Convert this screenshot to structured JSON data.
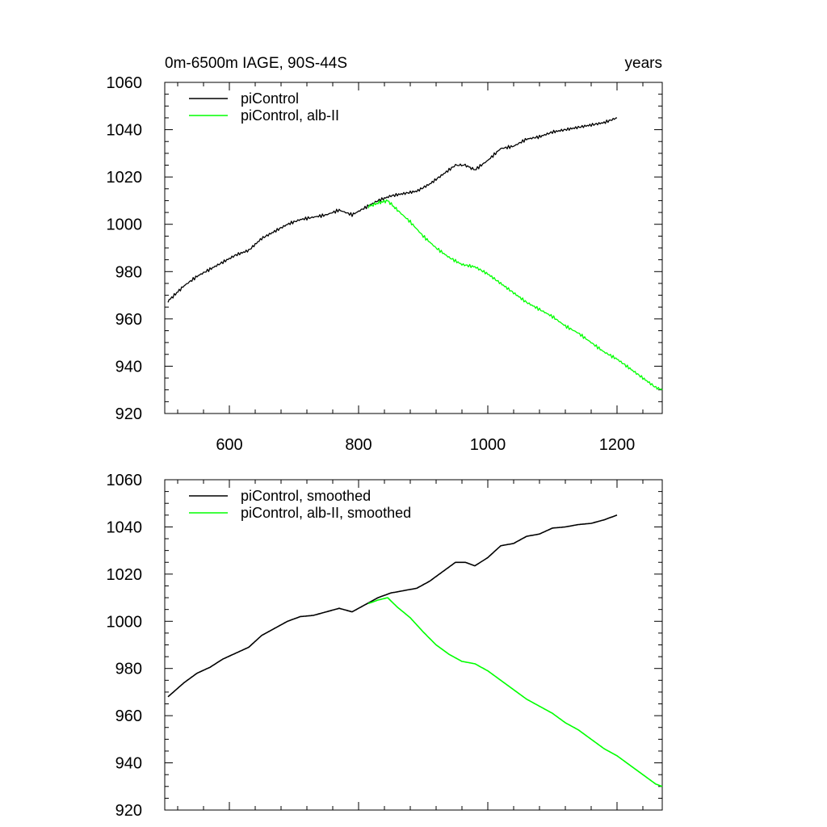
{
  "colors": {
    "control": "#000000",
    "albedo": "#00ff00"
  },
  "chart_data": [
    {
      "type": "line",
      "title_left": "0m-6500m IAGE, 90S-44S",
      "title_right": "years",
      "xlabel": "",
      "ylabel": "",
      "xlim": [
        500,
        1270
      ],
      "ylim": [
        920,
        1060
      ],
      "xticks": [
        600,
        800,
        1000,
        1200
      ],
      "xtick_labels": [
        "600",
        "800",
        "1000",
        "1200"
      ],
      "yticks": [
        920,
        940,
        960,
        980,
        1000,
        1020,
        1040,
        1060
      ],
      "ytick_labels": [
        "920",
        "940",
        "960",
        "980",
        "1000",
        "1020",
        "1040",
        "1060"
      ],
      "grid": false,
      "legend_position": "top-left",
      "series": [
        {
          "name": "piControl",
          "color": "#000000",
          "x": [
            505,
            530,
            550,
            570,
            590,
            610,
            630,
            650,
            670,
            690,
            710,
            730,
            750,
            770,
            790,
            810,
            830,
            850,
            870,
            890,
            910,
            930,
            950,
            965,
            980,
            1000,
            1020,
            1040,
            1060,
            1080,
            1100,
            1120,
            1140,
            1160,
            1180,
            1200
          ],
          "y": [
            967.5,
            974,
            978,
            981,
            984,
            987,
            989,
            994,
            997,
            1000,
            1002,
            1003,
            1004,
            1006,
            1004,
            1007,
            1010,
            1012,
            1013,
            1014,
            1017,
            1021,
            1025,
            1025,
            1023,
            1027,
            1032,
            1033,
            1036,
            1037,
            1039,
            1040,
            1041,
            1042,
            1043,
            1045
          ]
        },
        {
          "name": "piControl, alb-II",
          "color": "#00ff00",
          "x": [
            815,
            830,
            845,
            860,
            880,
            900,
            920,
            940,
            960,
            980,
            1000,
            1020,
            1040,
            1060,
            1080,
            1100,
            1120,
            1140,
            1160,
            1180,
            1200,
            1220,
            1240,
            1260,
            1270
          ],
          "y": [
            1007.5,
            1009,
            1010,
            1006,
            1001,
            995,
            990,
            986,
            983,
            982,
            979,
            975,
            971,
            967,
            964,
            961,
            957,
            954,
            950,
            946,
            943,
            939,
            935,
            931,
            930
          ]
        }
      ]
    },
    {
      "type": "line",
      "title_left": "",
      "title_right": "",
      "xlabel": "",
      "ylabel": "",
      "xlim": [
        500,
        1270
      ],
      "ylim": [
        920,
        1060
      ],
      "xticks": [
        600,
        800,
        1000,
        1200
      ],
      "xtick_labels": [],
      "yticks": [
        920,
        940,
        960,
        980,
        1000,
        1020,
        1040,
        1060
      ],
      "ytick_labels": [
        "920",
        "940",
        "960",
        "980",
        "1000",
        "1020",
        "1040",
        "1060"
      ],
      "grid": false,
      "legend_position": "top-left",
      "series": [
        {
          "name": "piControl, smoothed",
          "color": "#000000",
          "x": [
            505,
            530,
            550,
            570,
            590,
            610,
            630,
            650,
            670,
            690,
            710,
            730,
            750,
            770,
            790,
            810,
            830,
            850,
            870,
            890,
            910,
            930,
            950,
            965,
            980,
            1000,
            1020,
            1040,
            1060,
            1080,
            1100,
            1120,
            1140,
            1160,
            1180,
            1200
          ],
          "y": [
            968,
            974,
            978,
            980.5,
            984,
            986.5,
            989,
            994,
            997,
            1000,
            1002,
            1002.5,
            1004,
            1005.5,
            1004,
            1007,
            1010,
            1012,
            1013,
            1014,
            1017,
            1021,
            1025,
            1025,
            1023.5,
            1027,
            1032,
            1033,
            1036,
            1037,
            1039.5,
            1040,
            1041,
            1041.5,
            1043,
            1045
          ]
        },
        {
          "name": "piControl, alb-II, smoothed",
          "color": "#00ff00",
          "x": [
            815,
            830,
            845,
            860,
            880,
            900,
            920,
            940,
            960,
            980,
            1000,
            1020,
            1040,
            1060,
            1080,
            1100,
            1120,
            1140,
            1160,
            1180,
            1200,
            1220,
            1240,
            1260,
            1270
          ],
          "y": [
            1007.5,
            1009,
            1010,
            1006,
            1001.5,
            995.5,
            990,
            986,
            983,
            982,
            979,
            975,
            971,
            967,
            964,
            961,
            957,
            954,
            950,
            946,
            943,
            939,
            935,
            931,
            930
          ]
        }
      ]
    }
  ]
}
